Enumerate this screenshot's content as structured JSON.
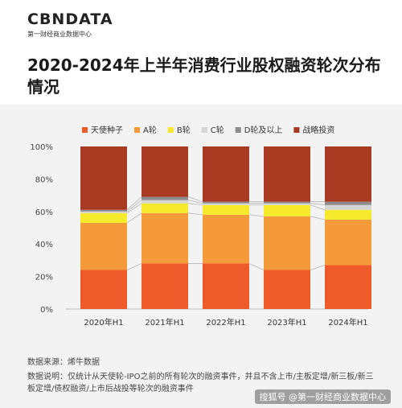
{
  "brand": {
    "logo_text": "CBNDATA",
    "logo_subtext": "第一财经商业数据中心"
  },
  "page_title": "2020-2024年上半年消费行业股权融资轮次分布情况",
  "chart_data": {
    "type": "bar",
    "stacked": true,
    "normalized": true,
    "title": "2020-2024年上半年消费行业股权融资轮次分布情况",
    "categories": [
      "2020年H1",
      "2021年H1",
      "2022年H1",
      "2023年H1",
      "2024年H1"
    ],
    "series": [
      {
        "name": "天使种子",
        "color": "#ee5a2a",
        "values": [
          24,
          28,
          28,
          24,
          27
        ]
      },
      {
        "name": "A轮",
        "color": "#f59a3a",
        "values": [
          29,
          31,
          30,
          33,
          28
        ]
      },
      {
        "name": "B轮",
        "color": "#f7e92c",
        "values": [
          6,
          6,
          6,
          7,
          6
        ]
      },
      {
        "name": "C轮",
        "color": "#d4d4d4",
        "values": [
          1,
          2,
          1,
          1,
          3
        ]
      },
      {
        "name": "D轮及以上",
        "color": "#8c8c8c",
        "values": [
          1,
          2,
          1,
          1,
          2
        ]
      },
      {
        "name": "战略投资",
        "color": "#a93a22",
        "values": [
          39,
          31,
          34,
          34,
          34
        ]
      }
    ],
    "y_ticks": [
      "0%",
      "20%",
      "40%",
      "60%",
      "80%",
      "100%"
    ],
    "ylim": [
      0,
      100
    ],
    "legend_position": "top",
    "grid": false,
    "connector_lines": true
  },
  "notes": {
    "source": "数据来源：烯牛数据",
    "description": "数据说明：仅统计从天使轮-IPO之前的所有轮次的融资事件，并且不含上市/主板定增/新三板/新三板定增/债权融资/上市后战投等轮次的融资事件"
  },
  "watermark": "搜狐号 @第一财经商业数据中心"
}
